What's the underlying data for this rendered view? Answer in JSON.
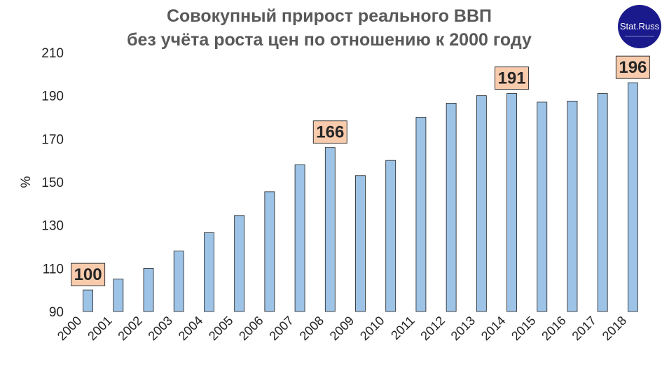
{
  "chart_data": {
    "type": "bar",
    "title": "Совокупный прирост реального ВВП",
    "subtitle": "без учёта роста цен по отношению к 2000 году",
    "xlabel": "",
    "ylabel": "%",
    "ylim": [
      90,
      210
    ],
    "yticks": [
      90,
      110,
      130,
      150,
      170,
      190,
      210
    ],
    "grid": false,
    "categories": [
      "2000",
      "2001",
      "2002",
      "2003",
      "2004",
      "2005",
      "2006",
      "2007",
      "2008",
      "2009",
      "2010",
      "2011",
      "2012",
      "2013",
      "2014",
      "2015",
      "2016",
      "2017",
      "2018"
    ],
    "values": [
      100,
      105,
      110,
      118,
      126.5,
      134.5,
      145.5,
      158,
      166,
      153,
      160,
      180,
      186.5,
      190,
      191,
      187,
      187.5,
      191,
      196
    ],
    "annotations": [
      {
        "category": "2000",
        "label": "100"
      },
      {
        "category": "2008",
        "label": "166"
      },
      {
        "category": "2014",
        "label": "191"
      },
      {
        "category": "2018",
        "label": "196"
      }
    ],
    "colors": {
      "bar": "#9dc3e6",
      "callout": "#f8cbad",
      "title": "#595959"
    }
  },
  "logo": {
    "text": "Stat.Russ",
    "color": "#1a1a8c",
    "icon": "stat-russ-logo"
  }
}
